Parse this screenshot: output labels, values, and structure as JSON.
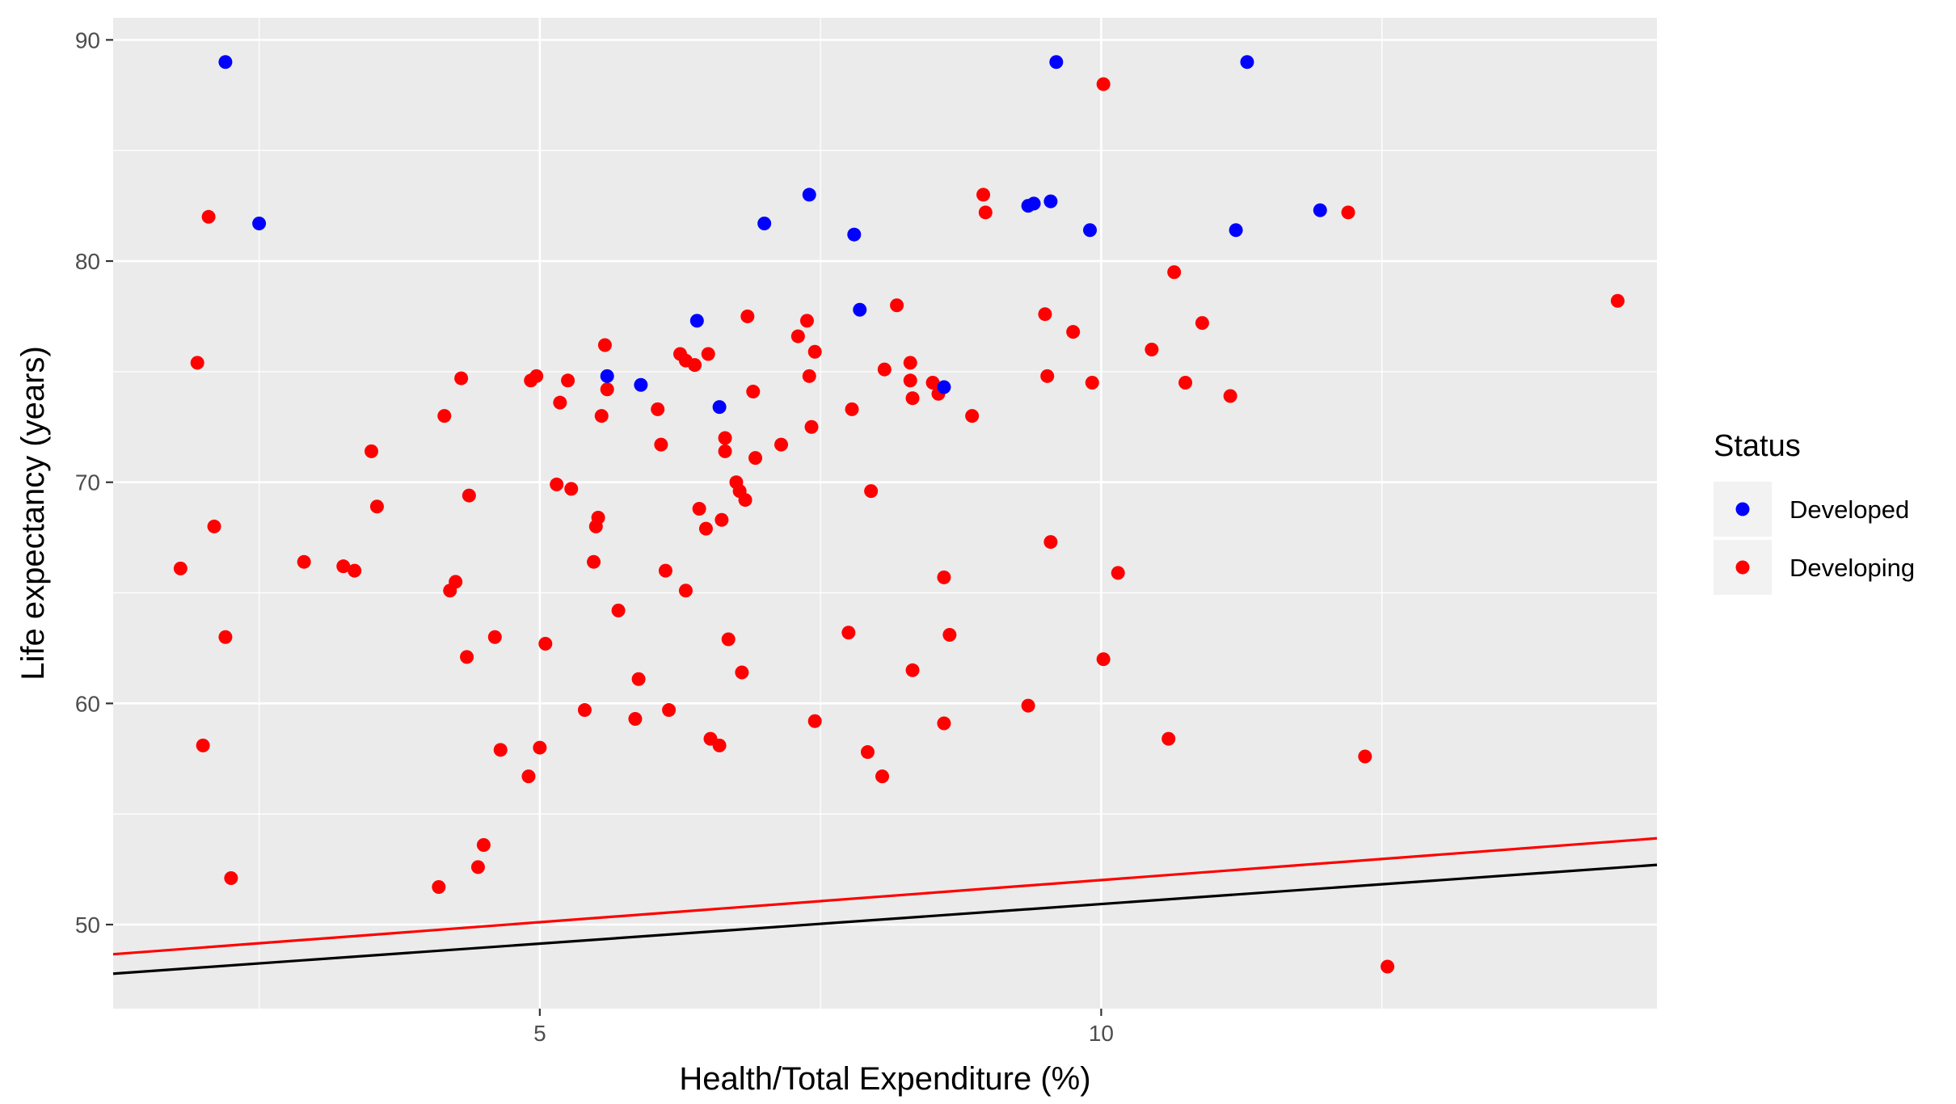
{
  "chart_data": {
    "type": "scatter",
    "xlabel": "Health/Total Expenditure (%)",
    "ylabel": "Life expectancy (years)",
    "xlim": [
      1.2,
      14.95
    ],
    "ylim": [
      46.2,
      91.0
    ],
    "x_ticks": [
      5,
      10
    ],
    "x_tick_labels": [
      "5",
      "10"
    ],
    "y_ticks": [
      50,
      60,
      70,
      80,
      90
    ],
    "y_tick_labels": [
      "50",
      "60",
      "70",
      "80",
      "90"
    ],
    "grid": true,
    "legend_position": "right",
    "legend": {
      "title": "Status",
      "entries": [
        {
          "label": "Developed",
          "color": "#0000ff"
        },
        {
          "label": "Developing",
          "color": "#ff0000"
        }
      ]
    },
    "series": [
      {
        "name": "Developed",
        "color": "#0000ff",
        "points": [
          [
            2.2,
            89.0
          ],
          [
            2.5,
            81.7
          ],
          [
            5.6,
            74.8
          ],
          [
            5.9,
            74.4
          ],
          [
            6.4,
            77.3
          ],
          [
            6.6,
            73.4
          ],
          [
            7.0,
            81.7
          ],
          [
            7.4,
            83.0
          ],
          [
            7.8,
            81.2
          ],
          [
            7.85,
            77.8
          ],
          [
            8.6,
            74.3
          ],
          [
            9.35,
            82.5
          ],
          [
            9.4,
            82.6
          ],
          [
            9.55,
            82.7
          ],
          [
            9.6,
            89.0
          ],
          [
            9.9,
            81.4
          ],
          [
            11.2,
            81.4
          ],
          [
            11.3,
            89.0
          ],
          [
            11.95,
            82.3
          ]
        ]
      },
      {
        "name": "Developing",
        "color": "#ff0000",
        "points": [
          [
            1.8,
            66.1
          ],
          [
            1.95,
            75.4
          ],
          [
            2.0,
            58.1
          ],
          [
            2.05,
            82.0
          ],
          [
            2.1,
            68.0
          ],
          [
            2.2,
            63.0
          ],
          [
            2.25,
            52.1
          ],
          [
            2.9,
            66.4
          ],
          [
            3.25,
            66.2
          ],
          [
            3.35,
            66.0
          ],
          [
            3.5,
            71.4
          ],
          [
            3.55,
            68.9
          ],
          [
            4.1,
            51.7
          ],
          [
            4.15,
            73.0
          ],
          [
            4.2,
            65.1
          ],
          [
            4.25,
            65.5
          ],
          [
            4.3,
            74.7
          ],
          [
            4.35,
            62.1
          ],
          [
            4.37,
            69.4
          ],
          [
            4.45,
            52.6
          ],
          [
            4.5,
            53.6
          ],
          [
            4.6,
            63.0
          ],
          [
            4.65,
            57.9
          ],
          [
            4.9,
            56.7
          ],
          [
            4.92,
            74.6
          ],
          [
            4.97,
            74.8
          ],
          [
            5.0,
            58.0
          ],
          [
            5.05,
            62.7
          ],
          [
            5.15,
            69.9
          ],
          [
            5.18,
            73.6
          ],
          [
            5.25,
            74.6
          ],
          [
            5.28,
            69.7
          ],
          [
            5.4,
            59.7
          ],
          [
            5.48,
            66.4
          ],
          [
            5.5,
            68.0
          ],
          [
            5.52,
            68.4
          ],
          [
            5.55,
            73.0
          ],
          [
            5.58,
            76.2
          ],
          [
            5.6,
            74.2
          ],
          [
            5.7,
            64.2
          ],
          [
            5.88,
            61.1
          ],
          [
            5.85,
            59.3
          ],
          [
            6.05,
            73.3
          ],
          [
            6.08,
            71.7
          ],
          [
            6.12,
            66.0
          ],
          [
            6.15,
            59.7
          ],
          [
            6.25,
            75.8
          ],
          [
            6.3,
            65.1
          ],
          [
            6.3,
            75.5
          ],
          [
            6.38,
            75.3
          ],
          [
            6.42,
            68.8
          ],
          [
            6.48,
            67.9
          ],
          [
            6.5,
            75.8
          ],
          [
            6.52,
            58.4
          ],
          [
            6.6,
            58.1
          ],
          [
            6.62,
            68.3
          ],
          [
            6.65,
            71.4
          ],
          [
            6.65,
            72.0
          ],
          [
            6.68,
            62.9
          ],
          [
            6.75,
            70.0
          ],
          [
            6.78,
            69.6
          ],
          [
            6.8,
            61.4
          ],
          [
            6.83,
            69.2
          ],
          [
            6.85,
            77.5
          ],
          [
            6.9,
            74.1
          ],
          [
            6.92,
            71.1
          ],
          [
            7.15,
            71.7
          ],
          [
            7.3,
            76.6
          ],
          [
            7.38,
            77.3
          ],
          [
            7.4,
            74.8
          ],
          [
            7.42,
            72.5
          ],
          [
            7.45,
            75.9
          ],
          [
            7.45,
            59.2
          ],
          [
            7.75,
            63.2
          ],
          [
            7.78,
            73.3
          ],
          [
            7.92,
            57.8
          ],
          [
            7.95,
            69.6
          ],
          [
            8.05,
            56.7
          ],
          [
            8.07,
            75.1
          ],
          [
            8.18,
            78.0
          ],
          [
            8.3,
            75.4
          ],
          [
            8.3,
            74.6
          ],
          [
            8.32,
            73.8
          ],
          [
            8.32,
            61.5
          ],
          [
            8.5,
            74.5
          ],
          [
            8.55,
            74.0
          ],
          [
            8.6,
            59.1
          ],
          [
            8.6,
            65.7
          ],
          [
            8.65,
            63.1
          ],
          [
            8.85,
            73.0
          ],
          [
            8.95,
            83.0
          ],
          [
            8.97,
            82.2
          ],
          [
            9.35,
            59.9
          ],
          [
            9.5,
            77.6
          ],
          [
            9.52,
            74.8
          ],
          [
            9.55,
            67.3
          ],
          [
            9.75,
            76.8
          ],
          [
            9.92,
            74.5
          ],
          [
            10.02,
            88.0
          ],
          [
            10.02,
            62.0
          ],
          [
            10.15,
            65.9
          ],
          [
            10.45,
            76.0
          ],
          [
            10.6,
            58.4
          ],
          [
            10.65,
            79.5
          ],
          [
            10.75,
            74.5
          ],
          [
            10.9,
            77.2
          ],
          [
            11.15,
            73.9
          ],
          [
            12.2,
            82.2
          ],
          [
            12.35,
            57.6
          ],
          [
            12.55,
            48.1
          ],
          [
            14.6,
            78.2
          ]
        ]
      }
    ],
    "lines": [
      {
        "color": "#ff0000",
        "from": [
          1.2,
          48.66
        ],
        "to": [
          14.95,
          53.9
        ]
      },
      {
        "color": "#000000",
        "from": [
          1.2,
          47.78
        ],
        "to": [
          14.95,
          52.7
        ]
      }
    ]
  }
}
